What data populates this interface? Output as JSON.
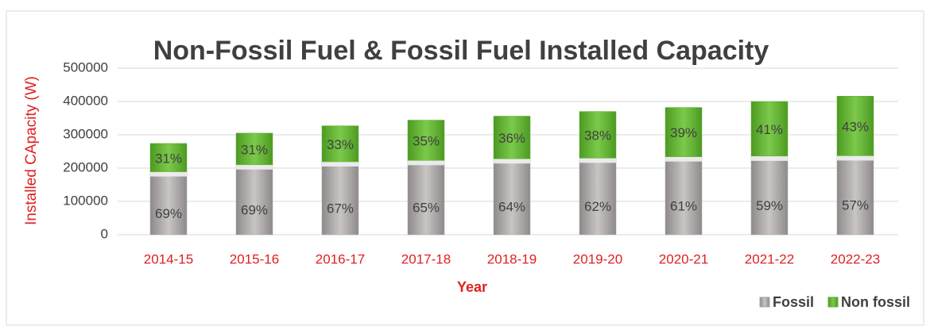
{
  "chart_data": {
    "type": "stacked_bar",
    "title": "Non-Fossil Fuel & Fossil Fuel Installed Capacity",
    "x_label": "Year",
    "y_label": "Installed CApacity (W)",
    "categories": [
      "2014-15",
      "2015-16",
      "2016-17",
      "2017-18",
      "2018-19",
      "2019-20",
      "2020-21",
      "2021-22",
      "2022-23"
    ],
    "series": [
      {
        "name": "Fossil",
        "color": "#a8a4a4",
        "values": [
          189000,
          210000,
          219000,
          223000,
          228000,
          230000,
          234000,
          236000,
          237000
        ],
        "data_labels": [
          "69%",
          "69%",
          "67%",
          "65%",
          "64%",
          "62%",
          "61%",
          "59%",
          "57%"
        ]
      },
      {
        "name": "Non fossil",
        "color": "#5db12f",
        "values": [
          85000,
          95000,
          108000,
          121000,
          128000,
          140000,
          148000,
          164000,
          179000
        ],
        "data_labels": [
          "31%",
          "31%",
          "33%",
          "35%",
          "36%",
          "38%",
          "39%",
          "41%",
          "43%"
        ]
      }
    ],
    "ylim": [
      0,
      500000
    ],
    "yticks": [
      0,
      100000,
      200000,
      300000,
      400000,
      500000
    ],
    "grid": true,
    "legend": "bottom-right"
  }
}
